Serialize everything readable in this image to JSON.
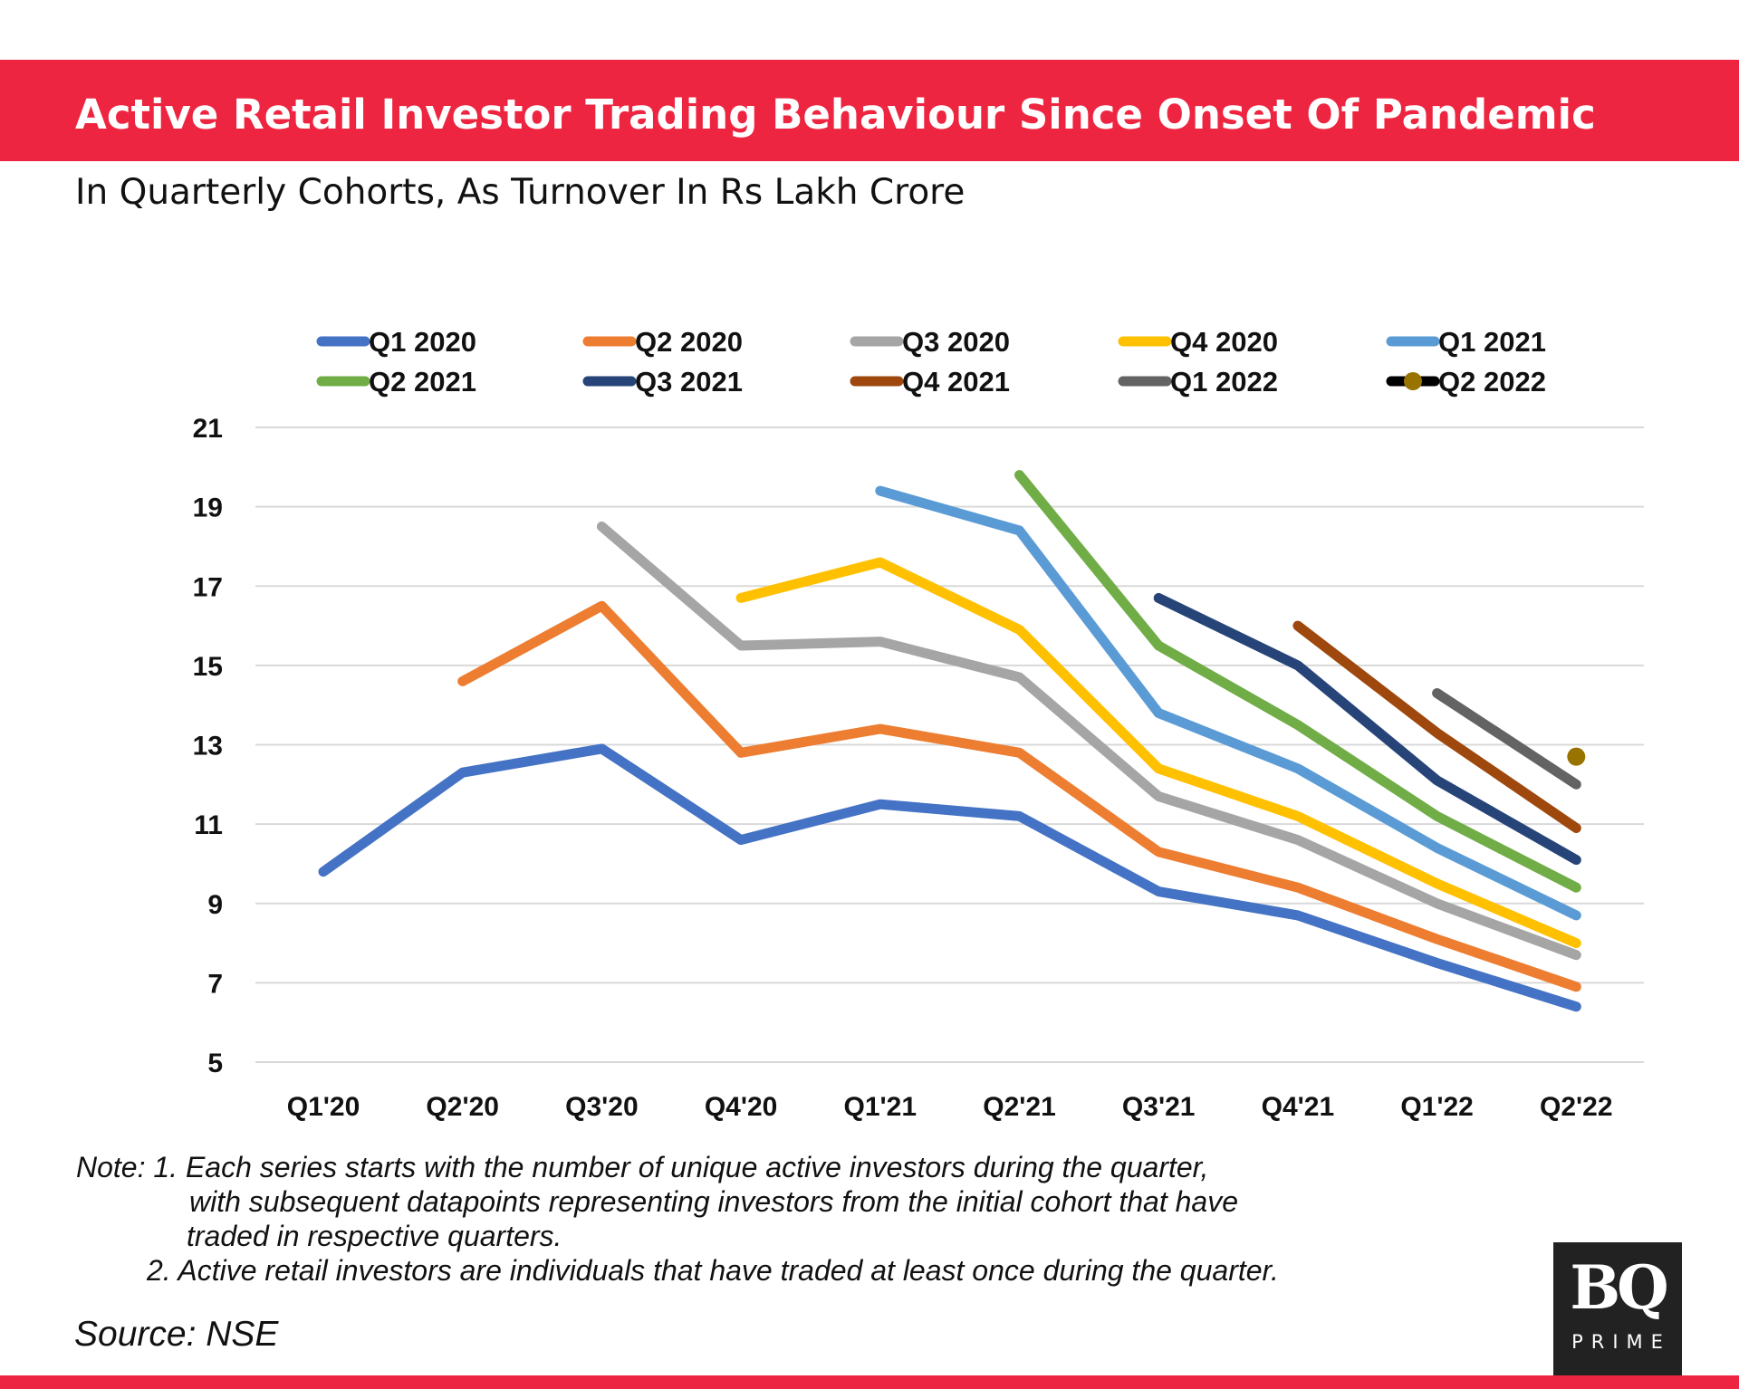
{
  "header": {
    "title": "Active Retail Investor Trading Behaviour Since Onset Of Pandemic",
    "subtitle": "In Quarterly Cohorts, As Turnover In Rs Lakh Crore"
  },
  "notes": {
    "line1": "Note: 1. Each series starts with the number of unique active investors during the quarter,",
    "line2": "with subsequent datapoints representing investors   from the initial cohort that have",
    "line3": "traded in respective quarters.",
    "line4": "2. Active retail investors are individuals that have traded at least once during the quarter."
  },
  "source": "Source: NSE",
  "logo": {
    "main": "BQ",
    "sub": "PRIME"
  },
  "colors": {
    "brand_red": "#ee2540"
  },
  "chart_data": {
    "type": "line",
    "title": "Active Retail Investor Trading Behaviour Since Onset Of Pandemic",
    "subtitle": "In Quarterly Cohorts, As Turnover In Rs Lakh Crore",
    "categories": [
      "Q1'20",
      "Q2'20",
      "Q3'20",
      "Q4'20",
      "Q1'21",
      "Q2'21",
      "Q3'21",
      "Q4'21",
      "Q1'22",
      "Q2'22"
    ],
    "ylim": [
      5,
      21
    ],
    "yticks": [
      5,
      7,
      9,
      11,
      13,
      15,
      17,
      19,
      21
    ],
    "grid": true,
    "legend_position": "top",
    "series": [
      {
        "name": "Q1 2020",
        "color": "#4472c4",
        "values": [
          9.8,
          12.3,
          12.9,
          10.6,
          11.5,
          11.2,
          9.3,
          8.7,
          7.5,
          6.4
        ]
      },
      {
        "name": "Q2 2020",
        "color": "#ed7d31",
        "values": [
          null,
          14.6,
          16.5,
          12.8,
          13.4,
          12.8,
          10.3,
          9.4,
          8.1,
          6.9
        ]
      },
      {
        "name": "Q3 2020",
        "color": "#a5a5a5",
        "values": [
          null,
          null,
          18.5,
          15.5,
          15.6,
          14.7,
          11.7,
          10.6,
          9.0,
          7.7
        ]
      },
      {
        "name": "Q4 2020",
        "color": "#ffc000",
        "values": [
          null,
          null,
          null,
          16.7,
          17.6,
          15.9,
          12.4,
          11.2,
          9.5,
          8.0
        ]
      },
      {
        "name": "Q1 2021",
        "color": "#5b9bd5",
        "values": [
          null,
          null,
          null,
          null,
          19.4,
          18.4,
          13.8,
          12.4,
          10.4,
          8.7
        ]
      },
      {
        "name": "Q2 2021",
        "color": "#70ad47",
        "values": [
          null,
          null,
          null,
          null,
          null,
          19.8,
          15.5,
          13.5,
          11.2,
          9.4
        ]
      },
      {
        "name": "Q3 2021",
        "color": "#264478",
        "values": [
          null,
          null,
          null,
          null,
          null,
          null,
          16.7,
          15.0,
          12.1,
          10.1
        ]
      },
      {
        "name": "Q4 2021",
        "color": "#9e480e",
        "values": [
          null,
          null,
          null,
          null,
          null,
          null,
          null,
          16.0,
          13.3,
          10.9
        ]
      },
      {
        "name": "Q1 2022",
        "color": "#636363",
        "values": [
          null,
          null,
          null,
          null,
          null,
          null,
          null,
          null,
          14.3,
          12.0
        ]
      },
      {
        "name": "Q2 2022",
        "color": "#997300",
        "marker": "dot",
        "legend_line_color": "#000000",
        "values": [
          null,
          null,
          null,
          null,
          null,
          null,
          null,
          null,
          null,
          12.7
        ]
      }
    ]
  }
}
